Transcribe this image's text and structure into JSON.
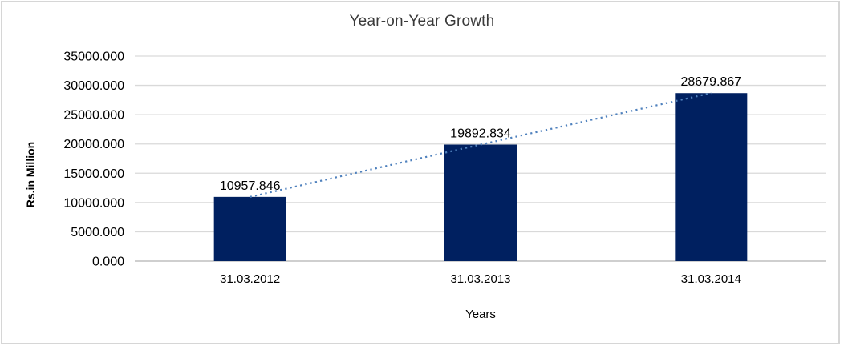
{
  "chart_data": {
    "type": "bar",
    "title": "Year-on-Year Growth",
    "xlabel": "Years",
    "ylabel": "Rs.in Million",
    "categories": [
      "31.03.2012",
      "31.03.2013",
      "31.03.2014"
    ],
    "values": [
      10957.846,
      19892.834,
      28679.867
    ],
    "data_labels": [
      "10957.846",
      "19892.834",
      "28679.867"
    ],
    "ylim": [
      0,
      35000
    ],
    "ytick_step": 5000,
    "ytick_labels": [
      "0.000",
      "5000.000",
      "10000.000",
      "15000.000",
      "20000.000",
      "25000.000",
      "30000.000",
      "35000.000"
    ],
    "grid": true,
    "legend_position": "none",
    "trendline": {
      "style": "dotted",
      "through_values": [
        10957.846,
        19892.834,
        28679.867
      ]
    },
    "colors": {
      "bar": "#002060",
      "trendline": "#4f81bd",
      "gridline": "#d9d9d9",
      "axis_line": "#bfbfbf",
      "text": "#000000",
      "title": "#3a3a3a",
      "frame_border": "#d6d6d6"
    }
  }
}
